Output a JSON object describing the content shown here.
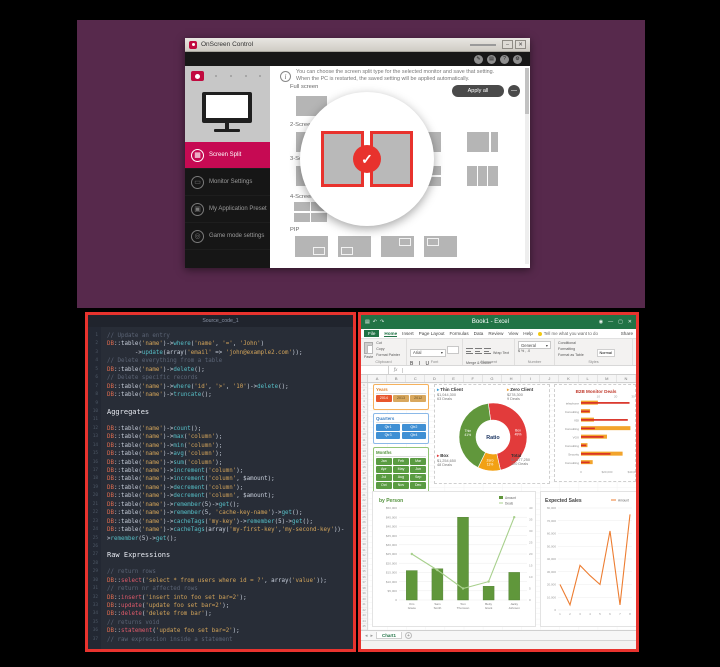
{
  "window_onscreen": {
    "title": "OnScreen Control",
    "titlebar_buttons": [
      "–",
      "✕"
    ],
    "toolbar_icons": [
      "pencil",
      "monitor",
      "help",
      "settings"
    ],
    "sidebar": {
      "items": [
        {
          "label": "Screen Split",
          "icon": "screen-split",
          "active": true
        },
        {
          "label": "Monitor Settings",
          "icon": "monitor-settings",
          "active": false
        },
        {
          "label": "My Application Preset",
          "icon": "app-preset",
          "active": false
        },
        {
          "label": "Game mode settings",
          "icon": "game-mode",
          "active": false
        }
      ]
    },
    "info_text": "You can choose the screen split type for the selected monitor and save that setting. When the PC is restarted, the saved setting will be applied automatically.",
    "apply_all_label": "Apply all",
    "sections": [
      {
        "label": "Full screen",
        "thumbs": [
          "full"
        ]
      },
      {
        "label": "2-Screen Split",
        "thumbs": [
          "v2",
          "wideL",
          "wideR",
          "narrowR"
        ]
      },
      {
        "label": "3-Screen Split",
        "thumbs": [
          "l1r2",
          "t2b1",
          "t1b2",
          "cols3"
        ]
      },
      {
        "label": "4-Screen Split",
        "thumbs": [
          "grid4"
        ]
      },
      {
        "label": "PIP",
        "thumbs": [
          "pipBR",
          "pipBL",
          "pipTR",
          "pipTL"
        ]
      }
    ],
    "selected_split": {
      "section": "2-Screen Split",
      "type": "v2"
    }
  },
  "code_editor": {
    "title": "Source_code_1",
    "lines": [
      "// Update an entry",
      "DB::table('name')->where('name', '=', 'John')",
      "        ->update(array('email' => 'john@example2.com'));",
      "// Delete everything from a table",
      "DB::table('name')->delete();",
      "// Delete specific records",
      "DB::table('name')->where('id', '>', '10')->delete();",
      "DB::table('name')->truncate();",
      "",
      "Aggregates",
      "",
      "DB::table('name')->count();",
      "DB::table('name')->max('column');",
      "DB::table('name')->min('column');",
      "DB::table('name')->avg('column');",
      "DB::table('name')->sum('column');",
      "DB::table('name')->increment('column');",
      "DB::table('name')->increment('column', $amount);",
      "DB::table('name')->decrement('column');",
      "DB::table('name')->decrement('column', $amount);",
      "DB::table('name')->remember(5)->get();",
      "DB::table('name')->remember(5, 'cache-key-name')->get();",
      "DB::table('name')->cacheTags('my-key')->remember(5)->get();",
      "DB::table('name')->cacheTags(array('my-first-key','my-second-key'))-",
      ">remember(5)->get();",
      "",
      "Raw Expressions",
      "",
      "// return rows",
      "DB::select('select * from users where id = ?', array('value'));",
      "// return nr affected rows",
      "DB::insert('insert into foo set bar=2');",
      "DB::update('update foo set bar=2');",
      "DB::delete('delete from bar');",
      "// returns void",
      "DB::statement('update foo set bar=2');",
      "// raw expression inside a statement"
    ]
  },
  "excel": {
    "title": "Book1 - Excel",
    "quick_access": [
      "save",
      "undo",
      "redo"
    ],
    "titlebar_buttons": [
      "account",
      "minimize",
      "maximize",
      "close"
    ],
    "menu_tabs": [
      "File",
      "Home",
      "Insert",
      "Page Layout",
      "Formulas",
      "Data",
      "Review",
      "View",
      "Help"
    ],
    "active_tab": "Home",
    "tell_me": "Tell me what you want to do",
    "share_label": "Share",
    "ribbon": {
      "paste": "Paste",
      "cut": "Cut",
      "copy": "Copy",
      "format_painter": "Format Painter",
      "font_name": "Arial",
      "bold_italic_underline": "B I U",
      "wrap_text": "Wrap Text",
      "merge_center": "Merge & Center",
      "number_format": "General",
      "conditional": "Conditional Formatting",
      "format_table": "Format as Table",
      "cell_styles": [
        "Normal",
        "Bad"
      ],
      "group_labels": [
        "Clipboard",
        "Font",
        "Alignment",
        "Number",
        "Styles"
      ]
    },
    "formula_bar": {
      "fx": "fx"
    },
    "columns": [
      "A",
      "B",
      "C",
      "D",
      "E",
      "F",
      "G",
      "H",
      "I",
      "J",
      "K",
      "L",
      "M",
      "N"
    ],
    "row_count": 45,
    "sheet_tab": "Chart1",
    "slicers": [
      {
        "title": "Years",
        "theme": "orange",
        "columns": 3,
        "buttons": [
          "2014",
          "2013",
          "2012"
        ],
        "selected": [
          "2014"
        ]
      },
      {
        "title": "Quarters",
        "theme": "blue",
        "columns": 2,
        "buttons": [
          "Qtr1",
          "Qtr2",
          "Qtr3",
          "Qtr4"
        ],
        "selected": [
          "Qtr1",
          "Qtr2",
          "Qtr3",
          "Qtr4"
        ]
      },
      {
        "title": "Months",
        "theme": "green",
        "columns": 3,
        "buttons": [
          "Jan",
          "Feb",
          "Mar",
          "Apr",
          "May",
          "Jun",
          "Jul",
          "Aug",
          "Sep",
          "Oct",
          "Nov",
          "Dec"
        ],
        "selected": [
          "Jan",
          "Feb",
          "Mar",
          "Apr",
          "May",
          "Jun",
          "Jul",
          "Aug",
          "Sep",
          "Oct",
          "Nov",
          "Dec"
        ]
      }
    ],
    "donut_callouts": [
      {
        "label": "Thin Client",
        "value": "$1,044,300",
        "deals": "63 Deals",
        "marker": "#2f9bd8",
        "slot": "tl"
      },
      {
        "label": "Zero Client",
        "value": "$278,300",
        "deals": "9 Deals",
        "marker": "#f0a030",
        "slot": "tr"
      },
      {
        "label": "Box",
        "value": "$1,254,650",
        "deals": "48 Deals",
        "marker": "#e23b3b",
        "slot": "bl"
      },
      {
        "label": "Total",
        "value": "$2,577,250",
        "deals": "120 Deals",
        "marker": null,
        "slot": "br"
      }
    ]
  },
  "chart_data": [
    {
      "type": "pie",
      "subtype": "donut",
      "title": "Ratio",
      "center_label": "Ratio",
      "slices": [
        {
          "label": "Thin",
          "pct": 41,
          "value": 1044300,
          "color": "#61973c"
        },
        {
          "label": "Zero",
          "pct": 11,
          "value": 278300,
          "color": "#f2a114"
        },
        {
          "label": "Box",
          "pct": 49,
          "value": 1254650,
          "color": "#e23b3b"
        }
      ],
      "total_value": 2577250,
      "start_angle": -8
    },
    {
      "type": "bar",
      "orientation": "horizontal",
      "title": "B2B Monitor Deals",
      "categories": [
        "telephone",
        "Consulting",
        "VDI",
        "Consulting",
        "VGX",
        "Consulting",
        "Security",
        "Consulting"
      ],
      "series": [
        {
          "name": "Amount",
          "color": "#f2a42c",
          "axis": "bottom",
          "max": 40000,
          "values": [
            13000,
            7000,
            10000,
            38000,
            20000,
            5000,
            32000,
            9000
          ]
        },
        {
          "name": "Deals",
          "color": "#d93025",
          "axis": "top",
          "max": 30,
          "values": [
            28,
            5,
            27,
            8,
            13,
            3,
            17,
            5
          ]
        }
      ],
      "top_ticks": [
        "10",
        "20",
        "30"
      ],
      "bottom_ticks": [
        "0",
        "$20,000",
        "$40,000"
      ]
    },
    {
      "type": "bar+line",
      "title": "by Person",
      "categories": [
        "Kim Grace",
        "Sam Smith",
        "Tom Thomson",
        "Betty Grant",
        "Jacky Johnson"
      ],
      "series": [
        {
          "name": "Amount",
          "chart": "bar",
          "color": "#60973b",
          "ylim": [
            0,
            50000
          ],
          "tick_step": 5000,
          "tick_prefix": "$",
          "values": [
            16000,
            17000,
            45000,
            7500,
            15000
          ]
        },
        {
          "name": "Deals",
          "chart": "line",
          "color": "#a8d08d",
          "ylim": [
            0,
            40
          ],
          "tick_step": 5,
          "values": [
            20,
            13,
            5,
            8,
            36
          ]
        }
      ],
      "legend_position": "top-right"
    },
    {
      "type": "line",
      "title": "Expected Sales",
      "legend": [
        "Amount"
      ],
      "color": "#ed7d31",
      "x_labels": [
        "1",
        "2",
        "3",
        "4",
        "5",
        "6",
        "7",
        "8"
      ],
      "values": [
        20000,
        4000,
        35000,
        27000,
        20000,
        62000,
        4000,
        75000
      ],
      "ylim": [
        0,
        80000
      ],
      "tick_step": 10000
    }
  ]
}
